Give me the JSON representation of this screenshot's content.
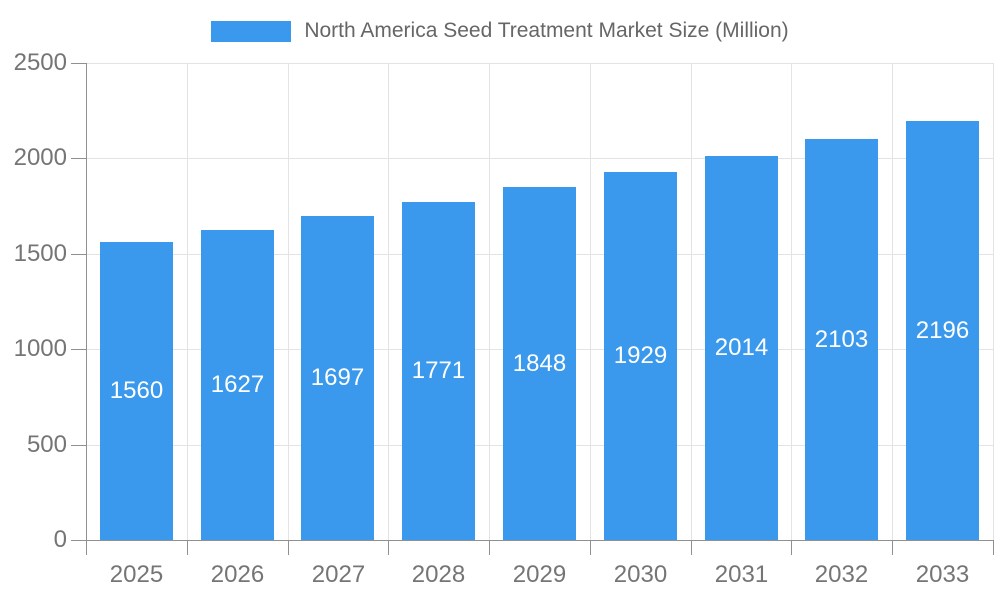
{
  "legend": {
    "label": "North America Seed Treatment Market Size (Million)",
    "swatch_color": "#3A99EC"
  },
  "chart_data": {
    "type": "bar",
    "title": "North America Seed Treatment Market Size (Million)",
    "categories": [
      "2025",
      "2026",
      "2027",
      "2028",
      "2029",
      "2030",
      "2031",
      "2032",
      "2033"
    ],
    "values": [
      1560,
      1627,
      1697,
      1771,
      1848,
      1929,
      2014,
      2103,
      2196
    ],
    "xlabel": "",
    "ylabel": "",
    "ylim": [
      0,
      2500
    ],
    "yticks": [
      0,
      500,
      1000,
      1500,
      2000,
      2500
    ],
    "grid": true,
    "legend_position": "top",
    "colors": {
      "bar": "#3A99EC",
      "value_label": "#FFFFFF",
      "gridline": "#E3E3E3",
      "axis": "#909090",
      "tick_label": "#757575",
      "legend_text": "#666666",
      "background": "#FFFFFF"
    }
  }
}
